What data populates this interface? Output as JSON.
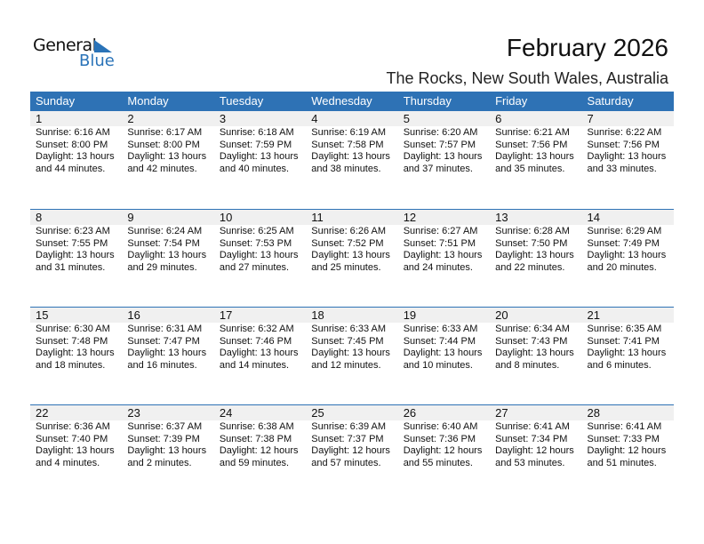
{
  "logo": {
    "line1": "General",
    "line2": "Blue"
  },
  "title": "February 2026",
  "location": "The Rocks, New South Wales, Australia",
  "colors": {
    "accent": "#2e72b5",
    "day_band": "#f0f0f0"
  },
  "weekdays": [
    "Sunday",
    "Monday",
    "Tuesday",
    "Wednesday",
    "Thursday",
    "Friday",
    "Saturday"
  ],
  "weeks": [
    [
      {
        "day": "1",
        "sunrise": "Sunrise: 6:16 AM",
        "sunset": "Sunset: 8:00 PM",
        "daylight": "Daylight: 13 hours",
        "minutes": "and 44 minutes."
      },
      {
        "day": "2",
        "sunrise": "Sunrise: 6:17 AM",
        "sunset": "Sunset: 8:00 PM",
        "daylight": "Daylight: 13 hours",
        "minutes": "and 42 minutes."
      },
      {
        "day": "3",
        "sunrise": "Sunrise: 6:18 AM",
        "sunset": "Sunset: 7:59 PM",
        "daylight": "Daylight: 13 hours",
        "minutes": "and 40 minutes."
      },
      {
        "day": "4",
        "sunrise": "Sunrise: 6:19 AM",
        "sunset": "Sunset: 7:58 PM",
        "daylight": "Daylight: 13 hours",
        "minutes": "and 38 minutes."
      },
      {
        "day": "5",
        "sunrise": "Sunrise: 6:20 AM",
        "sunset": "Sunset: 7:57 PM",
        "daylight": "Daylight: 13 hours",
        "minutes": "and 37 minutes."
      },
      {
        "day": "6",
        "sunrise": "Sunrise: 6:21 AM",
        "sunset": "Sunset: 7:56 PM",
        "daylight": "Daylight: 13 hours",
        "minutes": "and 35 minutes."
      },
      {
        "day": "7",
        "sunrise": "Sunrise: 6:22 AM",
        "sunset": "Sunset: 7:56 PM",
        "daylight": "Daylight: 13 hours",
        "minutes": "and 33 minutes."
      }
    ],
    [
      {
        "day": "8",
        "sunrise": "Sunrise: 6:23 AM",
        "sunset": "Sunset: 7:55 PM",
        "daylight": "Daylight: 13 hours",
        "minutes": "and 31 minutes."
      },
      {
        "day": "9",
        "sunrise": "Sunrise: 6:24 AM",
        "sunset": "Sunset: 7:54 PM",
        "daylight": "Daylight: 13 hours",
        "minutes": "and 29 minutes."
      },
      {
        "day": "10",
        "sunrise": "Sunrise: 6:25 AM",
        "sunset": "Sunset: 7:53 PM",
        "daylight": "Daylight: 13 hours",
        "minutes": "and 27 minutes."
      },
      {
        "day": "11",
        "sunrise": "Sunrise: 6:26 AM",
        "sunset": "Sunset: 7:52 PM",
        "daylight": "Daylight: 13 hours",
        "minutes": "and 25 minutes."
      },
      {
        "day": "12",
        "sunrise": "Sunrise: 6:27 AM",
        "sunset": "Sunset: 7:51 PM",
        "daylight": "Daylight: 13 hours",
        "minutes": "and 24 minutes."
      },
      {
        "day": "13",
        "sunrise": "Sunrise: 6:28 AM",
        "sunset": "Sunset: 7:50 PM",
        "daylight": "Daylight: 13 hours",
        "minutes": "and 22 minutes."
      },
      {
        "day": "14",
        "sunrise": "Sunrise: 6:29 AM",
        "sunset": "Sunset: 7:49 PM",
        "daylight": "Daylight: 13 hours",
        "minutes": "and 20 minutes."
      }
    ],
    [
      {
        "day": "15",
        "sunrise": "Sunrise: 6:30 AM",
        "sunset": "Sunset: 7:48 PM",
        "daylight": "Daylight: 13 hours",
        "minutes": "and 18 minutes."
      },
      {
        "day": "16",
        "sunrise": "Sunrise: 6:31 AM",
        "sunset": "Sunset: 7:47 PM",
        "daylight": "Daylight: 13 hours",
        "minutes": "and 16 minutes."
      },
      {
        "day": "17",
        "sunrise": "Sunrise: 6:32 AM",
        "sunset": "Sunset: 7:46 PM",
        "daylight": "Daylight: 13 hours",
        "minutes": "and 14 minutes."
      },
      {
        "day": "18",
        "sunrise": "Sunrise: 6:33 AM",
        "sunset": "Sunset: 7:45 PM",
        "daylight": "Daylight: 13 hours",
        "minutes": "and 12 minutes."
      },
      {
        "day": "19",
        "sunrise": "Sunrise: 6:33 AM",
        "sunset": "Sunset: 7:44 PM",
        "daylight": "Daylight: 13 hours",
        "minutes": "and 10 minutes."
      },
      {
        "day": "20",
        "sunrise": "Sunrise: 6:34 AM",
        "sunset": "Sunset: 7:43 PM",
        "daylight": "Daylight: 13 hours",
        "minutes": "and 8 minutes."
      },
      {
        "day": "21",
        "sunrise": "Sunrise: 6:35 AM",
        "sunset": "Sunset: 7:41 PM",
        "daylight": "Daylight: 13 hours",
        "minutes": "and 6 minutes."
      }
    ],
    [
      {
        "day": "22",
        "sunrise": "Sunrise: 6:36 AM",
        "sunset": "Sunset: 7:40 PM",
        "daylight": "Daylight: 13 hours",
        "minutes": "and 4 minutes."
      },
      {
        "day": "23",
        "sunrise": "Sunrise: 6:37 AM",
        "sunset": "Sunset: 7:39 PM",
        "daylight": "Daylight: 13 hours",
        "minutes": "and 2 minutes."
      },
      {
        "day": "24",
        "sunrise": "Sunrise: 6:38 AM",
        "sunset": "Sunset: 7:38 PM",
        "daylight": "Daylight: 12 hours",
        "minutes": "and 59 minutes."
      },
      {
        "day": "25",
        "sunrise": "Sunrise: 6:39 AM",
        "sunset": "Sunset: 7:37 PM",
        "daylight": "Daylight: 12 hours",
        "minutes": "and 57 minutes."
      },
      {
        "day": "26",
        "sunrise": "Sunrise: 6:40 AM",
        "sunset": "Sunset: 7:36 PM",
        "daylight": "Daylight: 12 hours",
        "minutes": "and 55 minutes."
      },
      {
        "day": "27",
        "sunrise": "Sunrise: 6:41 AM",
        "sunset": "Sunset: 7:34 PM",
        "daylight": "Daylight: 12 hours",
        "minutes": "and 53 minutes."
      },
      {
        "day": "28",
        "sunrise": "Sunrise: 6:41 AM",
        "sunset": "Sunset: 7:33 PM",
        "daylight": "Daylight: 12 hours",
        "minutes": "and 51 minutes."
      }
    ]
  ]
}
